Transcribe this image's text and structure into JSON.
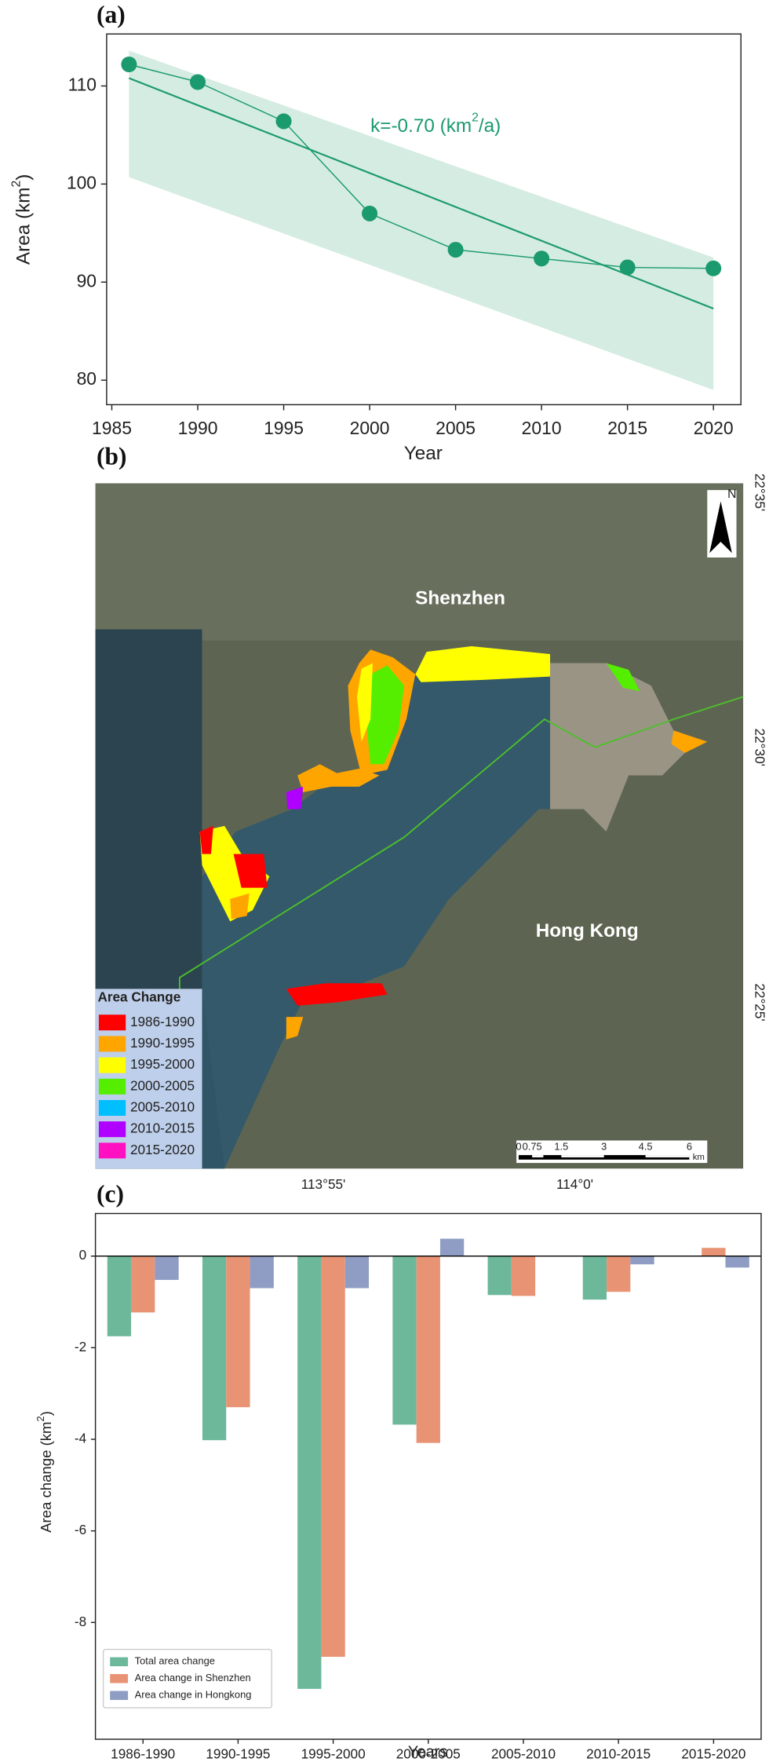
{
  "chart_data": [
    {
      "type": "line",
      "panel_label": "(a)",
      "x_label": "Year",
      "y_label": {
        "text": "Area (km",
        "superscript": "2",
        "closing": ")"
      },
      "annotation": {
        "text": "k=-0.70 (km",
        "superscript": "2",
        "closing": "/a)"
      },
      "x": [
        1986,
        1990,
        1995,
        2000,
        2005,
        2010,
        2015,
        2020
      ],
      "values": [
        112.2,
        110.4,
        106.4,
        97.0,
        93.3,
        92.4,
        91.5,
        91.4
      ],
      "color": "#1a9a6e",
      "trend": {
        "x": [
          1986,
          2020
        ],
        "values": [
          110.8,
          87.3
        ]
      },
      "band": {
        "x": [
          1986,
          2020
        ],
        "upper": [
          113.6,
          92.5
        ],
        "lower": [
          100.7,
          79.0
        ],
        "color": "#d5ece2"
      },
      "xlim": [
        1984.7,
        2021.6
      ],
      "ylim": [
        77.5,
        115.3
      ],
      "xticks": [
        1985,
        1990,
        1995,
        2000,
        2005,
        2010,
        2015,
        2020
      ],
      "yticks": [
        80,
        90,
        100,
        110
      ]
    },
    {
      "type": "bar",
      "panel_label": "(c)",
      "x_label": "Years",
      "y_label": {
        "text": "Area change (km",
        "superscript": "2",
        "closing": ")"
      },
      "categories": [
        "1986-1990",
        "1990-1995",
        "1995-2000",
        "2000-2005",
        "2005-2010",
        "2010-2015",
        "2015-2020"
      ],
      "series": [
        {
          "name": "Total area change",
          "color": "#6db89b",
          "values": [
            -1.75,
            -4.02,
            -9.45,
            -3.68,
            -0.85,
            -0.95,
            0
          ]
        },
        {
          "name": "Area change in Shenzhen",
          "color": "#e89474",
          "values": [
            -1.23,
            -3.3,
            -8.75,
            -4.08,
            -0.87,
            -0.78,
            0.18
          ]
        },
        {
          "name": "Area change in Hongkong",
          "color": "#8f9dc4",
          "values": [
            -0.52,
            -0.7,
            -0.7,
            0.38,
            0,
            -0.18,
            -0.25
          ]
        }
      ],
      "ylim": [
        -10.55,
        0.93
      ],
      "yticks": [
        0,
        -2,
        -4,
        -6,
        -8
      ],
      "legend": "lower left"
    }
  ],
  "map": {
    "panel_label": "(b)",
    "places": [
      "Shenzhen",
      "Hong Kong"
    ],
    "north": "N",
    "lat_ticks": [
      "22°35'",
      "22°30'",
      "22°25'"
    ],
    "lon_ticks": [
      "113°55'",
      "114°0'"
    ],
    "scale_bar": {
      "labels": [
        "0",
        "0.75",
        "1.5",
        "3",
        "4.5",
        "6"
      ],
      "unit": "km"
    },
    "legend": {
      "title": "Area Change",
      "items": [
        {
          "label": "1986-1990",
          "color": "#ff0000"
        },
        {
          "label": "1990-1995",
          "color": "#ffa500"
        },
        {
          "label": "1995-2000",
          "color": "#ffff00"
        },
        {
          "label": "2000-2005",
          "color": "#55ee00"
        },
        {
          "label": "2005-2010",
          "color": "#00bfff"
        },
        {
          "label": "2010-2015",
          "color": "#b000ff"
        },
        {
          "label": "2015-2020",
          "color": "#ff10c0"
        }
      ]
    }
  }
}
